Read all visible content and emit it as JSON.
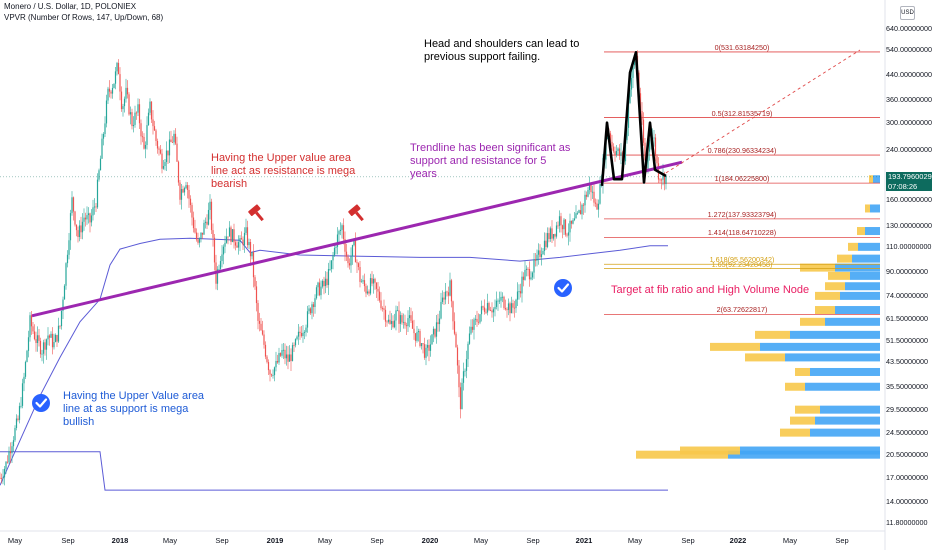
{
  "header": {
    "title": "Monero / U.S. Dollar, 1D, POLONIEX",
    "indicator": "VPVR (Number Of Rows, 147, Up/Down, 68)",
    "currency": "USD"
  },
  "price_badge": {
    "price": "193.79600290",
    "countdown": "07:08:26"
  },
  "colors": {
    "up": "#26a69a",
    "down": "#ef5350",
    "trendline": "#9c27b0",
    "fib": "#e04848",
    "value_area": "#5b5bd6",
    "vp_up": "#42a5f5",
    "vp_down": "#f7c84a",
    "head_shoulders": "#000000"
  },
  "annotations": [
    {
      "id": "hs",
      "text": "Head and shoulders can lead to\nprevious support failing.",
      "color": "#000000"
    },
    {
      "id": "resist",
      "text": "Having the Upper value area\nline act as resistance is mega\nbearish",
      "color": "#d32f2f"
    },
    {
      "id": "trend",
      "text": "Trendline has been significant as\nsupport and resistance for 5\nyears",
      "color": "#9c27b0"
    },
    {
      "id": "support",
      "text": "Having the Upper Value area\nline at as support is mega\nbullish",
      "color": "#1e5bd6"
    },
    {
      "id": "target",
      "text": "Target at fib ratio and High Volume Node",
      "color": "#e91e63"
    }
  ],
  "chart_data": {
    "type": "candlestick",
    "symbol": "XMRUSD",
    "log_scale": true,
    "ylim": [
      11.8,
      640
    ],
    "y_ticks": [
      "640.00000000",
      "540.00000000",
      "440.00000000",
      "360.00000000",
      "300.00000000",
      "240.00000000",
      "160.00000000",
      "130.00000000",
      "110.00000000",
      "90.00000000",
      "74.00000000",
      "61.50000000",
      "51.50000000",
      "43.50000000",
      "35.50000000",
      "29.50000000",
      "24.50000000",
      "20.50000000",
      "17.00000000",
      "14.00000000",
      "11.80000000"
    ],
    "x_ticks": [
      "May",
      "Sep",
      "2018",
      "May",
      "Sep",
      "2019",
      "May",
      "Sep",
      "2020",
      "May",
      "Sep",
      "2021",
      "May",
      "Sep",
      "2022",
      "May",
      "Sep"
    ],
    "fib_levels": [
      {
        "label": "0(531.63184250)",
        "value": 531.63,
        "color": "#e04848"
      },
      {
        "label": "0.5(312.81535719)",
        "value": 312.82,
        "color": "#e04848"
      },
      {
        "label": "0.786(230.96334234)",
        "value": 230.96,
        "color": "#e04848"
      },
      {
        "label": "1(184.06225800)",
        "value": 184.06,
        "color": "#e04848"
      },
      {
        "label": "1.272(137.93323794)",
        "value": 137.93,
        "color": "#e04848"
      },
      {
        "label": "1.414(118.64710228)",
        "value": 118.65,
        "color": "#e04848"
      },
      {
        "label": "1.618(95.56200342)",
        "value": 95.56,
        "color": "#d4a014"
      },
      {
        "label": "1.65(92.23428458)",
        "value": 92.23,
        "color": "#d4a014"
      },
      {
        "label": "2(63.72622817)",
        "value": 63.73,
        "color": "#e04848"
      }
    ],
    "price_path": [
      [
        0,
        17
      ],
      [
        6,
        19
      ],
      [
        12,
        23
      ],
      [
        18,
        27
      ],
      [
        24,
        38
      ],
      [
        30,
        60
      ],
      [
        36,
        52
      ],
      [
        42,
        48
      ],
      [
        48,
        54
      ],
      [
        54,
        50
      ],
      [
        60,
        58
      ],
      [
        66,
        95
      ],
      [
        72,
        160
      ],
      [
        78,
        120
      ],
      [
        84,
        140
      ],
      [
        90,
        135
      ],
      [
        96,
        160
      ],
      [
        102,
        250
      ],
      [
        108,
        380
      ],
      [
        114,
        420
      ],
      [
        118,
        480
      ],
      [
        122,
        340
      ],
      [
        126,
        380
      ],
      [
        132,
        300
      ],
      [
        138,
        330
      ],
      [
        144,
        240
      ],
      [
        150,
        340
      ],
      [
        156,
        260
      ],
      [
        162,
        220
      ],
      [
        168,
        240
      ],
      [
        174,
        270
      ],
      [
        180,
        170
      ],
      [
        186,
        190
      ],
      [
        192,
        140
      ],
      [
        198,
        110
      ],
      [
        204,
        130
      ],
      [
        210,
        150
      ],
      [
        216,
        85
      ],
      [
        222,
        110
      ],
      [
        228,
        125
      ],
      [
        234,
        118
      ],
      [
        240,
        112
      ],
      [
        246,
        122
      ],
      [
        252,
        100
      ],
      [
        258,
        60
      ],
      [
        264,
        50
      ],
      [
        270,
        40
      ],
      [
        276,
        42
      ],
      [
        282,
        47
      ],
      [
        288,
        44
      ],
      [
        294,
        48
      ],
      [
        300,
        55
      ],
      [
        306,
        60
      ],
      [
        312,
        70
      ],
      [
        318,
        78
      ],
      [
        324,
        80
      ],
      [
        330,
        90
      ],
      [
        336,
        115
      ],
      [
        342,
        130
      ],
      [
        348,
        95
      ],
      [
        354,
        110
      ],
      [
        360,
        85
      ],
      [
        366,
        78
      ],
      [
        372,
        82
      ],
      [
        378,
        75
      ],
      [
        384,
        66
      ],
      [
        390,
        58
      ],
      [
        396,
        64
      ],
      [
        402,
        60
      ],
      [
        408,
        62
      ],
      [
        414,
        55
      ],
      [
        420,
        52
      ],
      [
        426,
        46
      ],
      [
        432,
        52
      ],
      [
        438,
        60
      ],
      [
        444,
        75
      ],
      [
        450,
        80
      ],
      [
        456,
        50
      ],
      [
        460,
        30
      ],
      [
        464,
        40
      ],
      [
        470,
        55
      ],
      [
        476,
        60
      ],
      [
        482,
        66
      ],
      [
        488,
        70
      ],
      [
        494,
        66
      ],
      [
        500,
        72
      ],
      [
        506,
        70
      ],
      [
        512,
        66
      ],
      [
        518,
        75
      ],
      [
        524,
        88
      ],
      [
        530,
        90
      ],
      [
        536,
        96
      ],
      [
        542,
        110
      ],
      [
        548,
        120
      ],
      [
        554,
        124
      ],
      [
        560,
        140
      ],
      [
        566,
        125
      ],
      [
        572,
        130
      ],
      [
        578,
        140
      ],
      [
        584,
        160
      ],
      [
        590,
        182
      ],
      [
        596,
        150
      ],
      [
        600,
        175
      ],
      [
        604,
        230
      ],
      [
        608,
        290
      ],
      [
        612,
        250
      ],
      [
        618,
        235
      ],
      [
        624,
        220
      ],
      [
        630,
        410
      ],
      [
        636,
        520
      ],
      [
        640,
        350
      ],
      [
        646,
        200
      ],
      [
        650,
        280
      ],
      [
        654,
        260
      ],
      [
        658,
        200
      ],
      [
        662,
        195
      ],
      [
        666,
        193
      ]
    ],
    "trendline": {
      "start": [
        "2017-05",
        63
      ],
      "end": [
        "2021-08",
        218
      ]
    },
    "value_area_upper": [
      [
        0,
        16
      ],
      [
        20,
        23
      ],
      [
        40,
        33
      ],
      [
        60,
        45
      ],
      [
        80,
        60
      ],
      [
        100,
        72
      ],
      [
        110,
        95
      ],
      [
        120,
        108
      ],
      [
        140,
        113
      ],
      [
        160,
        117
      ],
      [
        190,
        118
      ],
      [
        240,
        116
      ],
      [
        250,
        105
      ],
      [
        260,
        107
      ],
      [
        300,
        103
      ],
      [
        360,
        102
      ],
      [
        420,
        101
      ],
      [
        470,
        101
      ],
      [
        520,
        98
      ],
      [
        560,
        101
      ],
      [
        590,
        104
      ],
      [
        620,
        107
      ],
      [
        650,
        111
      ],
      [
        668,
        111
      ]
    ],
    "value_area_lower": [
      [
        0,
        21
      ],
      [
        100,
        21
      ],
      [
        105,
        15.4
      ],
      [
        668,
        15.4
      ]
    ],
    "volume_profile": [
      {
        "price": 20.5,
        "up": 152,
        "down": 92
      },
      {
        "price": 21.2,
        "up": 140,
        "down": 60
      },
      {
        "price": 24.5,
        "up": 70,
        "down": 30
      },
      {
        "price": 27.0,
        "up": 65,
        "down": 25
      },
      {
        "price": 29.5,
        "up": 60,
        "down": 25
      },
      {
        "price": 35.5,
        "up": 75,
        "down": 20
      },
      {
        "price": 40.0,
        "up": 70,
        "down": 15
      },
      {
        "price": 45.0,
        "up": 95,
        "down": 40
      },
      {
        "price": 49.0,
        "up": 120,
        "down": 50
      },
      {
        "price": 54.0,
        "up": 90,
        "down": 35
      },
      {
        "price": 60.0,
        "up": 55,
        "down": 25
      },
      {
        "price": 66.0,
        "up": 45,
        "down": 20
      },
      {
        "price": 74.0,
        "up": 40,
        "down": 25
      },
      {
        "price": 80.0,
        "up": 35,
        "down": 20
      },
      {
        "price": 87.0,
        "up": 30,
        "down": 22
      },
      {
        "price": 93.0,
        "up": 45,
        "down": 35
      },
      {
        "price": 100.0,
        "up": 28,
        "down": 15
      },
      {
        "price": 110.0,
        "up": 22,
        "down": 10
      },
      {
        "price": 125.0,
        "up": 15,
        "down": 8
      },
      {
        "price": 150.0,
        "up": 10,
        "down": 5
      },
      {
        "price": 190.0,
        "up": 7,
        "down": 4
      }
    ],
    "markers": [
      {
        "type": "bearish-hammer",
        "near": "2018-10"
      },
      {
        "type": "bearish-hammer",
        "near": "2019-07"
      },
      {
        "type": "check",
        "near": "2017-06"
      },
      {
        "type": "check",
        "near": "2020-12"
      }
    ],
    "head_shoulders": [
      [
        602,
        180
      ],
      [
        607,
        300
      ],
      [
        614,
        190
      ],
      [
        622,
        190
      ],
      [
        630,
        450
      ],
      [
        636,
        530
      ],
      [
        644,
        185
      ],
      [
        650,
        300
      ],
      [
        655,
        205
      ],
      [
        666,
        195
      ]
    ]
  }
}
